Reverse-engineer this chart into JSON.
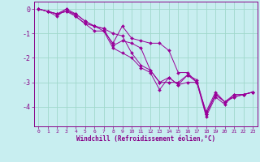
{
  "xlabel": "Windchill (Refroidissement éolien,°C)",
  "background_color": "#c8eef0",
  "grid_color": "#a0d8cc",
  "line_color": "#990099",
  "x_ticks": [
    0,
    1,
    2,
    3,
    4,
    5,
    6,
    7,
    8,
    9,
    10,
    11,
    12,
    13,
    14,
    15,
    16,
    17,
    18,
    19,
    20,
    21,
    22,
    23
  ],
  "y_ticks": [
    0,
    -1,
    -2,
    -3,
    -4
  ],
  "ylim": [
    -4.8,
    0.3
  ],
  "xlim": [
    -0.5,
    23.5
  ],
  "series": [
    [
      0,
      -0.1,
      -0.2,
      0.0,
      -0.2,
      -0.5,
      -0.7,
      -0.9,
      -1.6,
      -1.8,
      -2.0,
      -2.4,
      -2.6,
      -3.3,
      -2.8,
      -3.1,
      -3.0,
      -3.0,
      -4.3,
      -3.5,
      -3.8,
      -3.5,
      -3.5,
      -3.4
    ],
    [
      0,
      -0.1,
      -0.3,
      0.0,
      -0.3,
      -0.6,
      -0.9,
      -0.9,
      -1.4,
      -0.7,
      -1.2,
      -1.3,
      -1.4,
      -1.4,
      -1.7,
      -2.6,
      -2.6,
      -3.0,
      -4.4,
      -3.6,
      -3.9,
      -3.5,
      -3.5,
      -3.4
    ],
    [
      0,
      -0.1,
      -0.2,
      -0.1,
      -0.3,
      -0.6,
      -0.7,
      -0.8,
      -1.5,
      -1.3,
      -1.4,
      -1.6,
      -2.5,
      -3.0,
      -2.8,
      -3.1,
      -2.7,
      -2.9,
      -4.3,
      -3.5,
      -3.8,
      -3.6,
      -3.5,
      -3.4
    ],
    [
      0,
      -0.1,
      -0.2,
      -0.1,
      -0.2,
      -0.5,
      -0.7,
      -0.8,
      -1.0,
      -1.1,
      -1.8,
      -2.3,
      -2.5,
      -3.0,
      -3.0,
      -3.0,
      -2.7,
      -3.0,
      -4.2,
      -3.4,
      -3.8,
      -3.6,
      -3.5,
      -3.4
    ]
  ]
}
